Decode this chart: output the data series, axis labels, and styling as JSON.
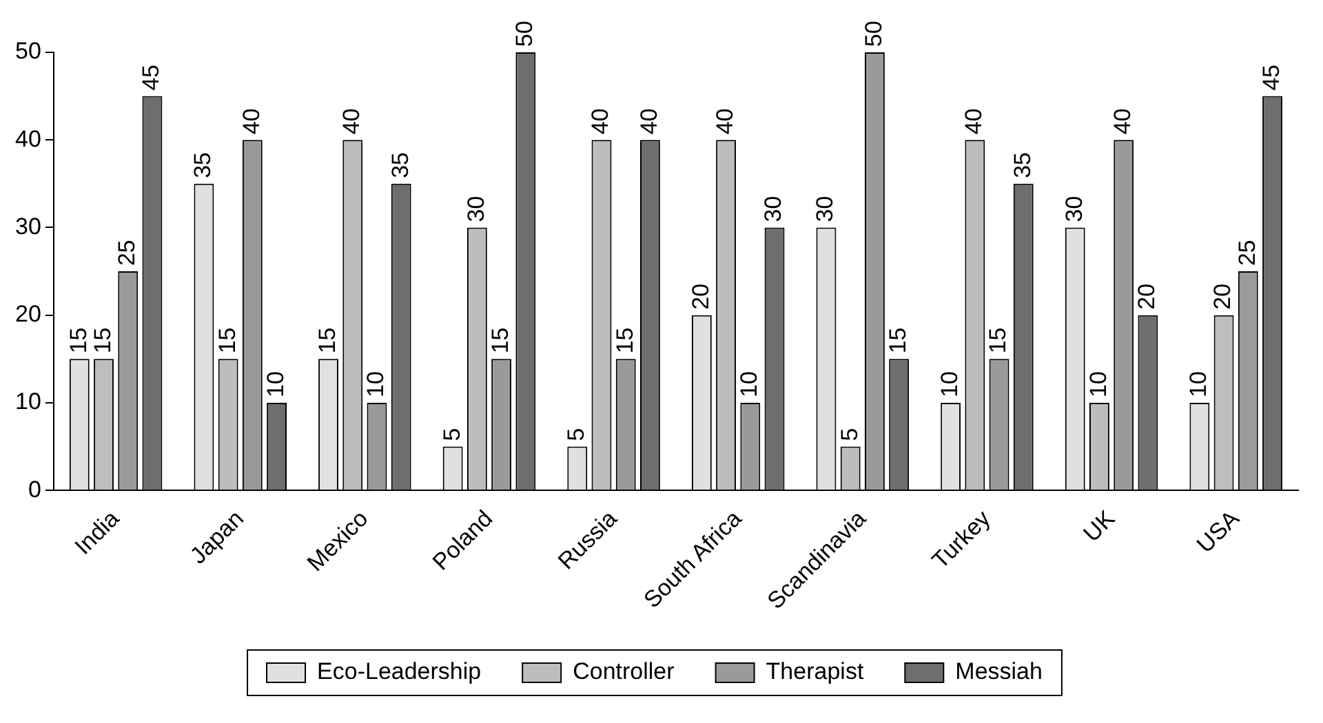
{
  "chart_data": {
    "type": "bar",
    "categories": [
      "India",
      "Japan",
      "Mexico",
      "Poland",
      "Russia",
      "South Africa",
      "Scandinavia",
      "Turkey",
      "UK",
      "USA"
    ],
    "series": [
      {
        "name": "Eco-Leadership",
        "color": "#e0e0e0",
        "values": [
          15,
          35,
          15,
          5,
          5,
          20,
          30,
          10,
          30,
          10
        ]
      },
      {
        "name": "Controller",
        "color": "#bdbdbd",
        "values": [
          15,
          15,
          40,
          30,
          40,
          40,
          5,
          40,
          10,
          20
        ]
      },
      {
        "name": "Therapist",
        "color": "#9a9a9a",
        "values": [
          25,
          40,
          10,
          15,
          15,
          10,
          50,
          15,
          40,
          25
        ]
      },
      {
        "name": "Messiah",
        "color": "#6e6e6e",
        "values": [
          45,
          10,
          35,
          50,
          40,
          30,
          15,
          35,
          20,
          45
        ]
      }
    ],
    "ylim": [
      0,
      50
    ],
    "yticks": [
      0,
      10,
      20,
      30,
      40,
      50
    ],
    "grid": false,
    "legend": "bottom",
    "data_labels": true
  }
}
